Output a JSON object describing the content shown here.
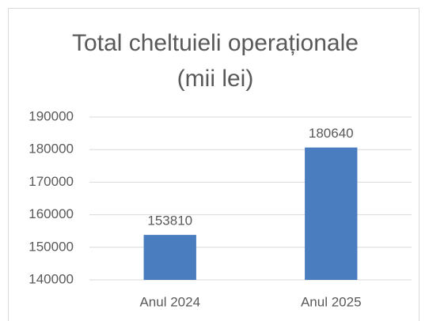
{
  "chart_data": {
    "type": "bar",
    "title": "Total cheltuieli operaționale (mii lei)",
    "categories": [
      "Anul 2024",
      "Anul 2025"
    ],
    "values": [
      153810,
      180640
    ],
    "color": "#4a7dbf",
    "ylim": [
      140000,
      190000
    ],
    "yticks": [
      140000,
      150000,
      160000,
      170000,
      180000,
      190000
    ],
    "grid": true
  }
}
